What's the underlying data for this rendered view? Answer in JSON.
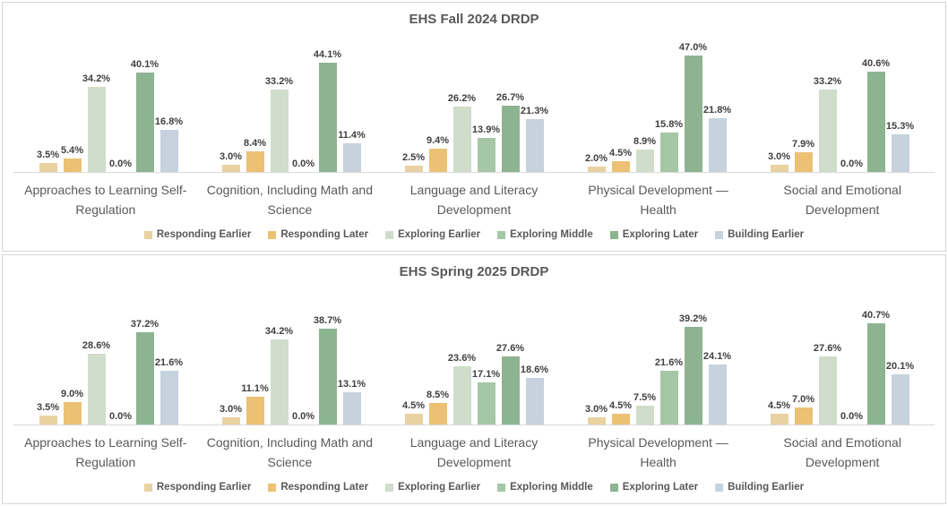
{
  "styles": {
    "title_color": "#595959",
    "category_label_color": "#595959",
    "data_label_color": "#404040",
    "axis_line_color": "#d9d9d9",
    "panel_border_color": "#d6d6d6",
    "background": "#ffffff"
  },
  "chart_data": [
    {
      "type": "bar",
      "title": "EHS Fall 2024 DRDP",
      "xlabel": "",
      "ylabel": "",
      "ylim": [
        0,
        50
      ],
      "grid": false,
      "legend_position": "bottom",
      "value_suffix": "%",
      "categories": [
        "Approaches to Learning Self-\nRegulation",
        "Cognition, Including Math and\nScience",
        "Language and Literacy\nDevelopment",
        "Physical Development —\nHealth",
        "Social and Emotional\nDevelopment"
      ],
      "series": [
        {
          "name": "Responding Earlier",
          "color": "#e9d2a2",
          "values": [
            3.5,
            3.0,
            2.5,
            2.0,
            3.0
          ]
        },
        {
          "name": "Responding Later",
          "color": "#ecc173",
          "values": [
            5.4,
            8.4,
            9.4,
            4.5,
            7.9
          ]
        },
        {
          "name": "Exploring Earlier",
          "color": "#cfddca",
          "values": [
            34.2,
            33.2,
            26.2,
            8.9,
            33.2
          ]
        },
        {
          "name": "Exploring Middle",
          "color": "#a5c7a5",
          "values": [
            0.0,
            0.0,
            13.9,
            15.8,
            0.0
          ]
        },
        {
          "name": "Exploring Later",
          "color": "#8db490",
          "values": [
            40.1,
            44.1,
            26.7,
            47.0,
            40.6
          ]
        },
        {
          "name": "Building Earlier",
          "color": "#c6d2dd",
          "values": [
            16.8,
            11.4,
            21.3,
            21.8,
            15.3
          ]
        }
      ]
    },
    {
      "type": "bar",
      "title": "EHS Spring 2025 DRDP",
      "xlabel": "",
      "ylabel": "",
      "ylim": [
        0,
        50
      ],
      "grid": false,
      "legend_position": "bottom",
      "value_suffix": "%",
      "categories": [
        "Approaches to Learning Self-\nRegulation",
        "Cognition, Including Math and\nScience",
        "Language and Literacy\nDevelopment",
        "Physical Development —\nHealth",
        "Social and Emotional\nDevelopment"
      ],
      "series": [
        {
          "name": "Responding Earlier",
          "color": "#e9d2a2",
          "values": [
            3.5,
            3.0,
            4.5,
            3.0,
            4.5
          ]
        },
        {
          "name": "Responding Later",
          "color": "#ecc173",
          "values": [
            9.0,
            11.1,
            8.5,
            4.5,
            7.0
          ]
        },
        {
          "name": "Exploring Earlier",
          "color": "#cfddca",
          "values": [
            28.6,
            34.2,
            23.6,
            7.5,
            27.6
          ]
        },
        {
          "name": "Exploring Middle",
          "color": "#a5c7a5",
          "values": [
            0.0,
            0.0,
            17.1,
            21.6,
            0.0
          ]
        },
        {
          "name": "Exploring Later",
          "color": "#8db490",
          "values": [
            37.2,
            38.7,
            27.6,
            39.2,
            40.7
          ]
        },
        {
          "name": "Building Earlier",
          "color": "#c6d2dd",
          "values": [
            21.6,
            13.1,
            18.6,
            24.1,
            20.1
          ]
        }
      ]
    }
  ]
}
